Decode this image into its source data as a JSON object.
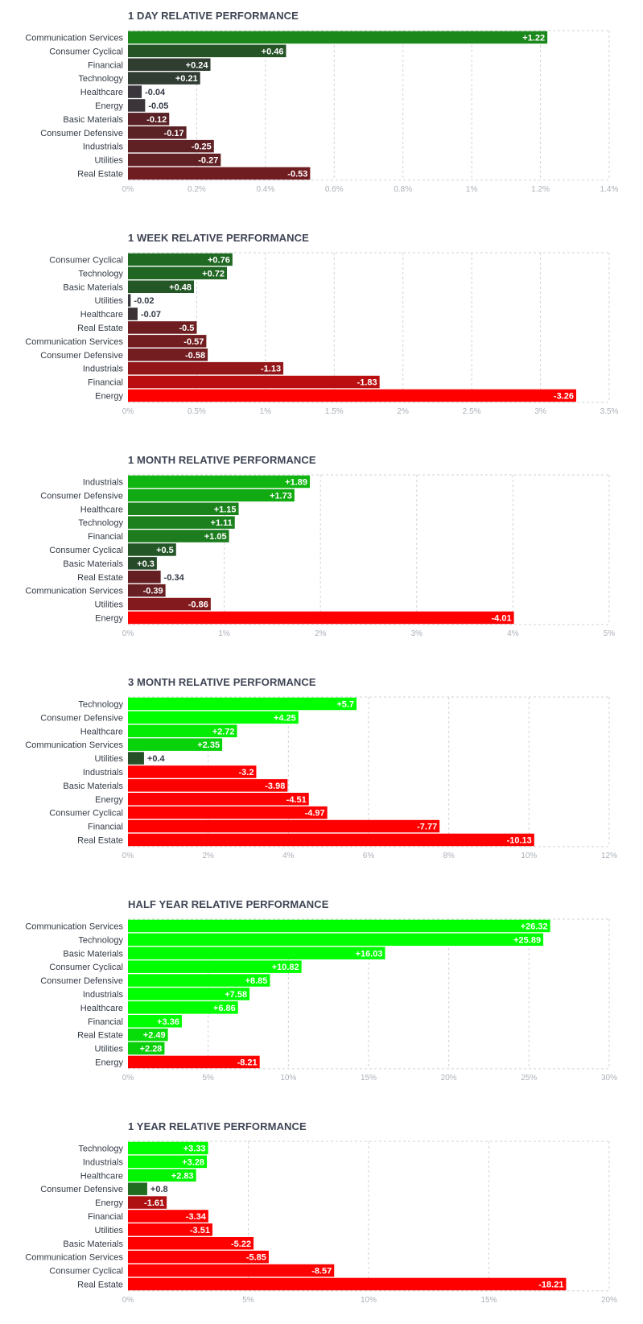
{
  "chart_data": [
    {
      "type": "bar",
      "orientation": "horizontal",
      "title": "1 DAY RELATIVE PERFORMANCE",
      "categories": [
        "Communication Services",
        "Consumer Cyclical",
        "Financial",
        "Technology",
        "Healthcare",
        "Energy",
        "Basic Materials",
        "Consumer Defensive",
        "Industrials",
        "Utilities",
        "Real Estate"
      ],
      "values": [
        1.22,
        0.46,
        0.24,
        0.21,
        -0.04,
        -0.05,
        -0.12,
        -0.17,
        -0.25,
        -0.27,
        -0.53
      ],
      "value_labels": [
        "+1.22",
        "+0.46",
        "+0.24",
        "+0.21",
        "-0.04",
        "-0.05",
        "-0.12",
        "-0.17",
        "-0.25",
        "-0.27",
        "-0.53"
      ],
      "xlim": [
        0,
        1.4
      ],
      "ticks": [
        0,
        0.2,
        0.4,
        0.6,
        0.8,
        1,
        1.2,
        1.4
      ],
      "tick_labels": [
        "0%",
        "0.2%",
        "0.4%",
        "0.6%",
        "0.8%",
        "1%",
        "1.2%",
        "1.4%"
      ],
      "grid": true
    },
    {
      "type": "bar",
      "orientation": "horizontal",
      "title": "1 WEEK RELATIVE PERFORMANCE",
      "categories": [
        "Consumer Cyclical",
        "Technology",
        "Basic Materials",
        "Utilities",
        "Healthcare",
        "Real Estate",
        "Communication Services",
        "Consumer Defensive",
        "Industrials",
        "Financial",
        "Energy"
      ],
      "values": [
        0.76,
        0.72,
        0.48,
        -0.02,
        -0.07,
        -0.5,
        -0.57,
        -0.58,
        -1.13,
        -1.83,
        -3.26
      ],
      "value_labels": [
        "+0.76",
        "+0.72",
        "+0.48",
        "-0.02",
        "-0.07",
        "-0.5",
        "-0.57",
        "-0.58",
        "-1.13",
        "-1.83",
        "-3.26"
      ],
      "xlim": [
        0,
        3.5
      ],
      "ticks": [
        0,
        0.5,
        1,
        1.5,
        2,
        2.5,
        3,
        3.5
      ],
      "tick_labels": [
        "0%",
        "0.5%",
        "1%",
        "1.5%",
        "2%",
        "2.5%",
        "3%",
        "3.5%"
      ],
      "grid": true
    },
    {
      "type": "bar",
      "orientation": "horizontal",
      "title": "1 MONTH RELATIVE PERFORMANCE",
      "categories": [
        "Industrials",
        "Consumer Defensive",
        "Healthcare",
        "Technology",
        "Financial",
        "Consumer Cyclical",
        "Basic Materials",
        "Real Estate",
        "Communication Services",
        "Utilities",
        "Energy"
      ],
      "values": [
        1.89,
        1.73,
        1.15,
        1.11,
        1.05,
        0.5,
        0.3,
        -0.34,
        -0.39,
        -0.86,
        -4.01
      ],
      "value_labels": [
        "+1.89",
        "+1.73",
        "+1.15",
        "+1.11",
        "+1.05",
        "+0.5",
        "+0.3",
        "-0.34",
        "-0.39",
        "-0.86",
        "-4.01"
      ],
      "xlim": [
        0,
        5
      ],
      "ticks": [
        0,
        1,
        2,
        3,
        4,
        5
      ],
      "tick_labels": [
        "0%",
        "1%",
        "2%",
        "3%",
        "4%",
        "5%"
      ],
      "grid": true
    },
    {
      "type": "bar",
      "orientation": "horizontal",
      "title": "3 MONTH RELATIVE PERFORMANCE",
      "categories": [
        "Technology",
        "Consumer Defensive",
        "Healthcare",
        "Communication Services",
        "Utilities",
        "Industrials",
        "Basic Materials",
        "Energy",
        "Consumer Cyclical",
        "Financial",
        "Real Estate"
      ],
      "values": [
        5.7,
        4.25,
        2.72,
        2.35,
        0.4,
        -3.2,
        -3.98,
        -4.51,
        -4.97,
        -7.77,
        -10.13
      ],
      "value_labels": [
        "+5.7",
        "+4.25",
        "+2.72",
        "+2.35",
        "+0.4",
        "-3.2",
        "-3.98",
        "-4.51",
        "-4.97",
        "-7.77",
        "-10.13"
      ],
      "xlim": [
        0,
        12
      ],
      "ticks": [
        0,
        2,
        4,
        6,
        8,
        10,
        12
      ],
      "tick_labels": [
        "0%",
        "2%",
        "4%",
        "6%",
        "8%",
        "10%",
        "12%"
      ],
      "grid": true
    },
    {
      "type": "bar",
      "orientation": "horizontal",
      "title": "HALF YEAR RELATIVE PERFORMANCE",
      "categories": [
        "Communication Services",
        "Technology",
        "Basic Materials",
        "Consumer Cyclical",
        "Consumer Defensive",
        "Industrials",
        "Healthcare",
        "Financial",
        "Real Estate",
        "Utilities",
        "Energy"
      ],
      "values": [
        26.32,
        25.89,
        16.03,
        10.82,
        8.85,
        7.58,
        6.86,
        3.36,
        2.49,
        2.28,
        -8.21
      ],
      "value_labels": [
        "+26.32",
        "+25.89",
        "+16.03",
        "+10.82",
        "+8.85",
        "+7.58",
        "+6.86",
        "+3.36",
        "+2.49",
        "+2.28",
        "-8.21"
      ],
      "xlim": [
        0,
        30
      ],
      "ticks": [
        0,
        5,
        10,
        15,
        20,
        25,
        30
      ],
      "tick_labels": [
        "0%",
        "5%",
        "10%",
        "15%",
        "20%",
        "25%",
        "30%"
      ],
      "grid": true
    },
    {
      "type": "bar",
      "orientation": "horizontal",
      "title": "1 YEAR RELATIVE PERFORMANCE",
      "categories": [
        "Technology",
        "Industrials",
        "Healthcare",
        "Consumer Defensive",
        "Energy",
        "Financial",
        "Utilities",
        "Basic Materials",
        "Communication Services",
        "Consumer Cyclical",
        "Real Estate"
      ],
      "values": [
        3.33,
        3.28,
        2.83,
        0.8,
        -1.61,
        -3.34,
        -3.51,
        -5.22,
        -5.85,
        -8.57,
        -18.21
      ],
      "value_labels": [
        "+3.33",
        "+3.28",
        "+2.83",
        "+0.8",
        "-1.61",
        "-3.34",
        "-3.51",
        "-5.22",
        "-5.85",
        "-8.57",
        "-18.21"
      ],
      "xlim": [
        0,
        20
      ],
      "ticks": [
        0,
        5,
        10,
        15,
        20
      ],
      "tick_labels": [
        "0%",
        "5%",
        "10%",
        "15%",
        "20%"
      ],
      "grid": true
    }
  ]
}
